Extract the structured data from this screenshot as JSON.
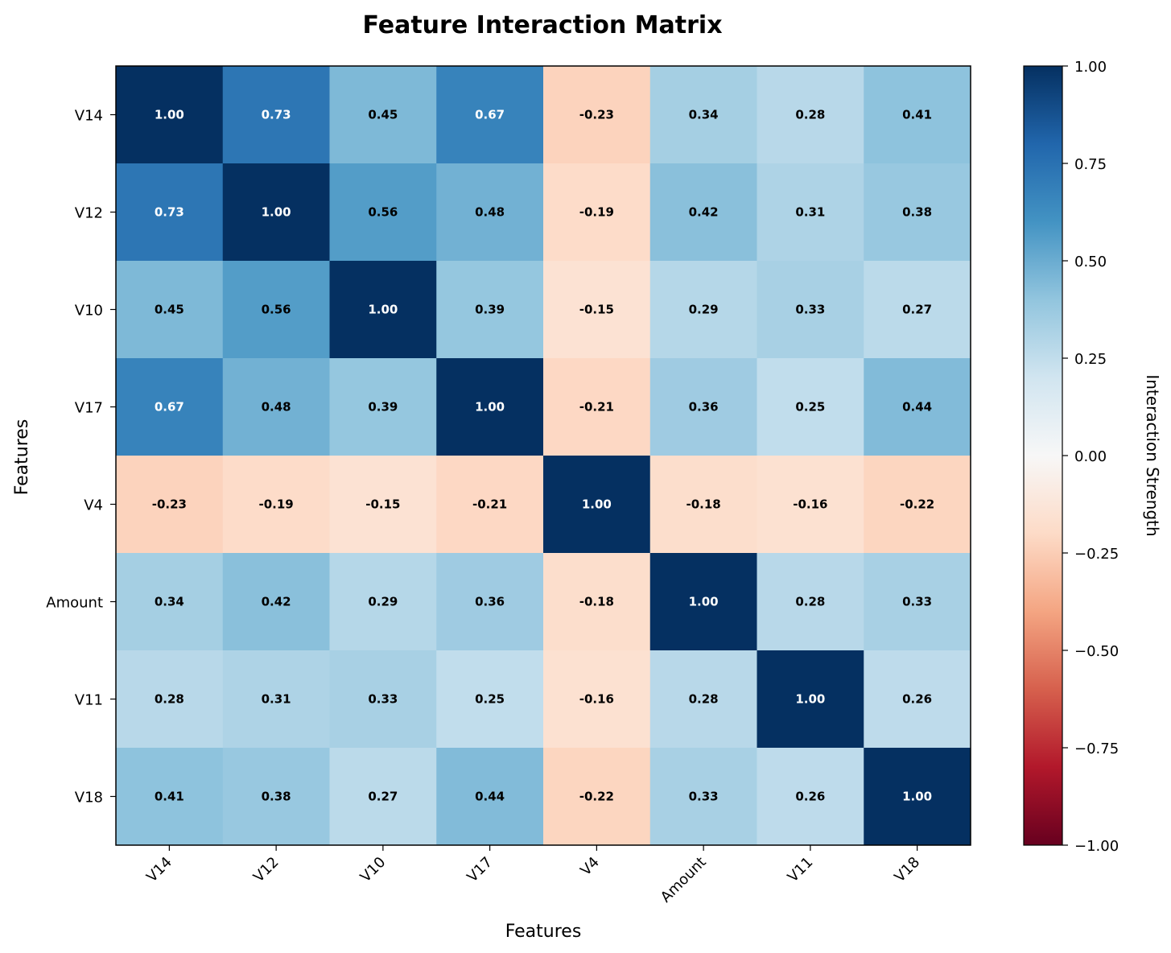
{
  "chart_data": {
    "type": "heatmap",
    "title": "Feature Interaction Matrix",
    "xlabel": "Features",
    "ylabel": "Features",
    "x_categories": [
      "V14",
      "V12",
      "V10",
      "V17",
      "V4",
      "Amount",
      "V11",
      "V18"
    ],
    "y_categories": [
      "V14",
      "V12",
      "V10",
      "V17",
      "V4",
      "Amount",
      "V11",
      "V18"
    ],
    "values": [
      [
        1.0,
        0.73,
        0.45,
        0.67,
        -0.23,
        0.34,
        0.28,
        0.41
      ],
      [
        0.73,
        1.0,
        0.56,
        0.48,
        -0.19,
        0.42,
        0.31,
        0.38
      ],
      [
        0.45,
        0.56,
        1.0,
        0.39,
        -0.15,
        0.29,
        0.33,
        0.27
      ],
      [
        0.67,
        0.48,
        0.39,
        1.0,
        -0.21,
        0.36,
        0.25,
        0.44
      ],
      [
        -0.23,
        -0.19,
        -0.15,
        -0.21,
        1.0,
        -0.18,
        -0.16,
        -0.22
      ],
      [
        0.34,
        0.42,
        0.29,
        0.36,
        -0.18,
        1.0,
        0.28,
        0.33
      ],
      [
        0.28,
        0.31,
        0.33,
        0.25,
        -0.16,
        0.28,
        1.0,
        0.26
      ],
      [
        0.41,
        0.38,
        0.27,
        0.44,
        -0.22,
        0.33,
        0.26,
        1.0
      ]
    ],
    "value_format": "0.00",
    "colormap": "RdBu",
    "colorbar": {
      "label": "Interaction Strength",
      "range": [
        -1.0,
        1.0
      ],
      "ticks": [
        1.0,
        0.75,
        0.5,
        0.25,
        0.0,
        -0.25,
        -0.5,
        -0.75,
        -1.0
      ],
      "tick_labels": [
        "1.00",
        "0.75",
        "0.50",
        "0.25",
        "0.00",
        "−0.25",
        "−0.50",
        "−0.75",
        "−1.00"
      ]
    },
    "x_tick_rotation": 45,
    "grid": false
  }
}
